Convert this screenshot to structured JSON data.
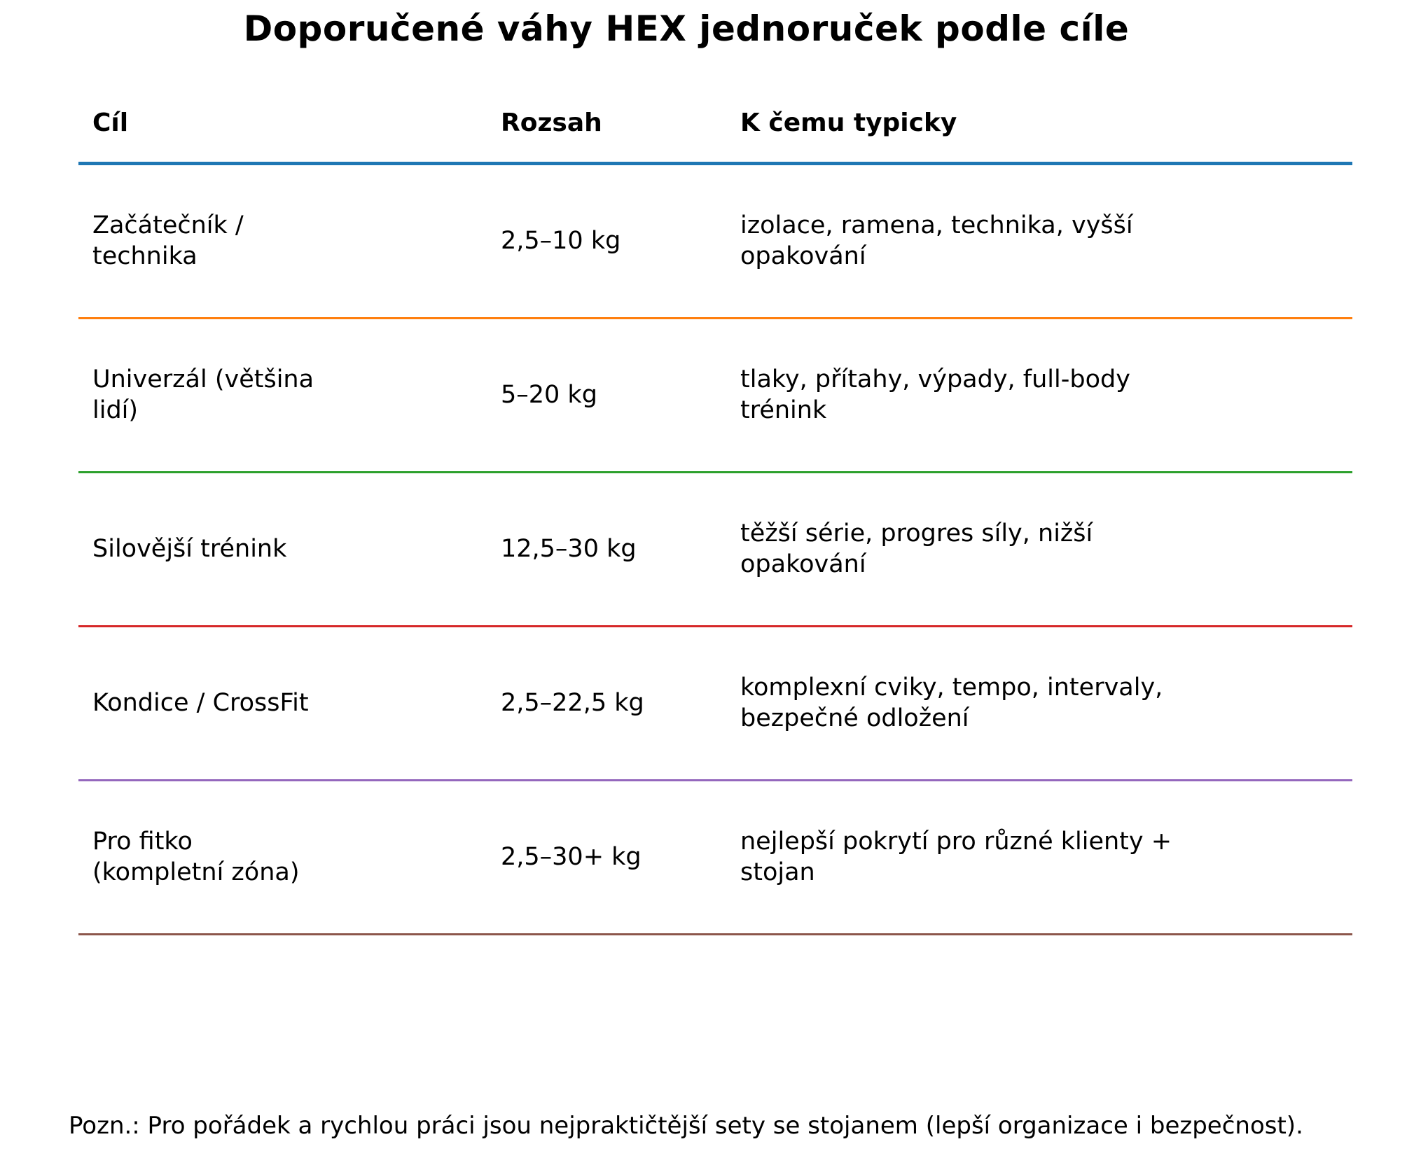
{
  "title": "Doporučené váhy HEX jednoruček podle cíle",
  "table": {
    "columns": [
      {
        "label": "Cíl"
      },
      {
        "label": "Rozsah"
      },
      {
        "label": "K čemu typicky"
      }
    ],
    "header_rule_color": "#1f77b4",
    "rows": [
      {
        "goal": "Začátečník /\ntechnika",
        "range": "2,5–10 kg",
        "use": "izolace, ramena, technika, vyšší\nopakování",
        "rule_color": "#ff7f0e"
      },
      {
        "goal": "Univerzál (většina\nlidí)",
        "range": "5–20 kg",
        "use": "tlaky, přítahy, výpady, full-body\ntrénink",
        "rule_color": "#2ca02c"
      },
      {
        "goal": "Silovější trénink",
        "range": "12,5–30 kg",
        "use": "těžší série, progres síly, nižší\nopakování",
        "rule_color": "#d62728"
      },
      {
        "goal": "Kondice / CrossFit",
        "range": "2,5–22,5 kg",
        "use": "komplexní cviky, tempo, intervaly,\nbezpečné odložení",
        "rule_color": "#9467bd"
      },
      {
        "goal": "Pro fitko\n(kompletní zóna)",
        "range": "2,5–30+ kg",
        "use": "nejlepší pokrytí pro různé klienty +\nstojan",
        "rule_color": "#8c564b"
      }
    ]
  },
  "note": "Pozn.: Pro pořádek a rychlou práci jsou nejpraktičtější sety se stojanem (lepší organizace i bezpečnost)."
}
